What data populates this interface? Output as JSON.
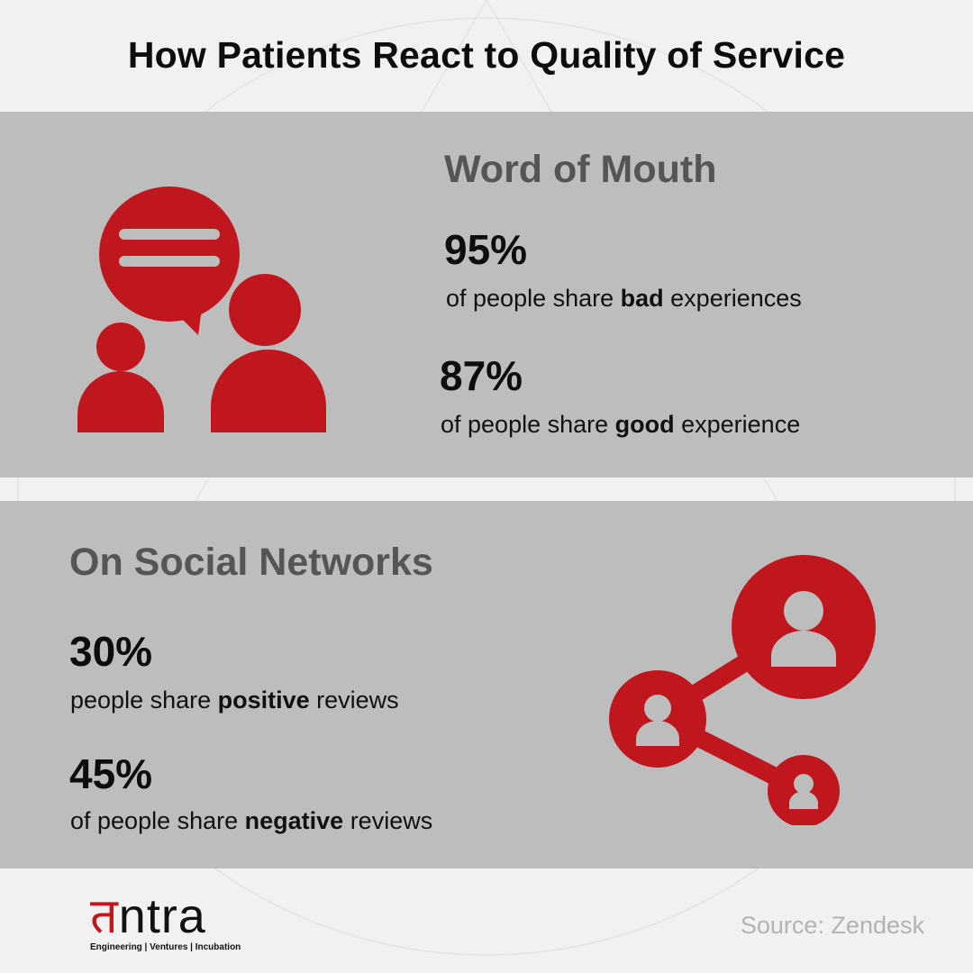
{
  "title": "How Patients React to Quality of Service",
  "word_of_mouth": {
    "heading": "Word of Mouth",
    "stats": [
      {
        "value": "95%",
        "prefix": "of people share ",
        "emphasis": "bad",
        "suffix": " experiences"
      },
      {
        "value": "87%",
        "prefix": "of people share ",
        "emphasis": "good",
        "suffix": " experience"
      }
    ],
    "icon": "conversation-people-icon"
  },
  "social_networks": {
    "heading": "On Social Networks",
    "stats": [
      {
        "value": "30%",
        "prefix": "people share ",
        "emphasis": "positive",
        "suffix": " reviews"
      },
      {
        "value": "45%",
        "prefix": "of people share ",
        "emphasis": "negative",
        "suffix": " reviews"
      }
    ],
    "icon": "social-network-share-icon"
  },
  "logo": {
    "first_letter": "त",
    "rest": "ntra",
    "tagline": "Engineering | Ventures | Incubation"
  },
  "source": "Source: Zendesk",
  "colors": {
    "accent": "#c0171e",
    "panel": "#bdbdbd",
    "background": "#f1f1f1",
    "heading": "#555555"
  }
}
